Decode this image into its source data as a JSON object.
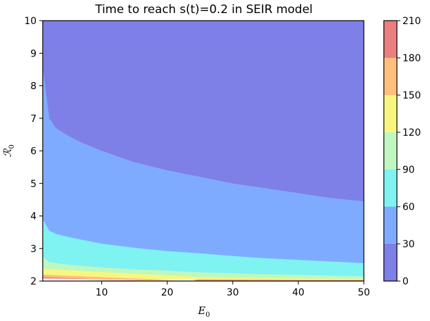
{
  "chart_data": {
    "type": "heatmap",
    "title": "Time to reach s(t)=0.2 in SEIR model",
    "xlabel": {
      "main": "E",
      "sub": "0"
    },
    "ylabel": {
      "main": "ℛ",
      "sub": "0"
    },
    "xlim": [
      1,
      50
    ],
    "ylim": [
      2,
      10
    ],
    "xticks": [
      10,
      20,
      30,
      40,
      50
    ],
    "xtick_labels": [
      "10",
      "20",
      "30",
      "40",
      "50"
    ],
    "yticks": [
      2,
      3,
      4,
      5,
      6,
      7,
      8,
      9,
      10
    ],
    "ytick_labels": [
      "2",
      "3",
      "4",
      "5",
      "6",
      "7",
      "8",
      "9",
      "10"
    ],
    "colorbar": {
      "levels": [
        0,
        30,
        60,
        90,
        120,
        150,
        180,
        210
      ],
      "tick_labels": [
        "0",
        "30",
        "60",
        "90",
        "120",
        "150",
        "180",
        "210"
      ],
      "colors": [
        "#7f7fe8",
        "#7fabff",
        "#7ff2f2",
        "#bff7bf",
        "#f7f77f",
        "#ffbf7f",
        "#eb7f7f"
      ]
    },
    "contours": [
      {
        "level": 30,
        "points": [
          [
            1,
            8.6
          ],
          [
            2,
            7.0
          ],
          [
            3,
            6.7
          ],
          [
            5,
            6.45
          ],
          [
            7,
            6.25
          ],
          [
            10,
            6.0
          ],
          [
            15,
            5.65
          ],
          [
            20,
            5.4
          ],
          [
            25,
            5.2
          ],
          [
            30,
            5.0
          ],
          [
            35,
            4.85
          ],
          [
            40,
            4.7
          ],
          [
            45,
            4.55
          ],
          [
            50,
            4.45
          ]
        ]
      },
      {
        "level": 60,
        "points": [
          [
            1,
            3.9
          ],
          [
            2,
            3.55
          ],
          [
            3,
            3.45
          ],
          [
            5,
            3.35
          ],
          [
            10,
            3.15
          ],
          [
            15,
            3.02
          ],
          [
            20,
            2.92
          ],
          [
            25,
            2.85
          ],
          [
            30,
            2.77
          ],
          [
            35,
            2.7
          ],
          [
            40,
            2.65
          ],
          [
            45,
            2.6
          ],
          [
            50,
            2.55
          ]
        ]
      },
      {
        "level": 90,
        "points": [
          [
            1,
            2.75
          ],
          [
            2,
            2.58
          ],
          [
            5,
            2.5
          ],
          [
            10,
            2.42
          ],
          [
            15,
            2.36
          ],
          [
            20,
            2.32
          ],
          [
            25,
            2.27
          ],
          [
            30,
            2.24
          ],
          [
            35,
            2.21
          ],
          [
            40,
            2.19
          ],
          [
            45,
            2.17
          ],
          [
            50,
            2.15
          ]
        ]
      },
      {
        "level": 120,
        "points": [
          [
            1,
            2.38
          ],
          [
            5,
            2.33
          ],
          [
            10,
            2.28
          ],
          [
            15,
            2.22
          ],
          [
            20,
            2.18
          ],
          [
            23,
            2.14
          ],
          [
            25,
            2.12
          ],
          [
            30,
            2.1
          ],
          [
            35,
            2.09
          ],
          [
            40,
            2.08
          ],
          [
            45,
            2.07
          ],
          [
            50,
            2.07
          ]
        ]
      },
      {
        "level": 150,
        "points": [
          [
            1,
            2.2
          ],
          [
            5,
            2.16
          ],
          [
            10,
            2.12
          ],
          [
            15,
            2.08
          ],
          [
            20,
            2.04
          ],
          [
            23,
            2.02
          ],
          [
            25,
            2.06
          ],
          [
            30,
            2.05
          ],
          [
            35,
            2.05
          ],
          [
            40,
            2.04
          ],
          [
            45,
            2.04
          ],
          [
            50,
            2.04
          ]
        ]
      },
      {
        "level": 180,
        "points": [
          [
            1,
            2.12
          ],
          [
            5,
            2.09
          ],
          [
            10,
            2.05
          ],
          [
            15,
            2.02
          ],
          [
            20,
            2.0
          ],
          [
            25,
            2.03
          ],
          [
            30,
            2.03
          ],
          [
            35,
            2.02
          ],
          [
            40,
            2.02
          ],
          [
            45,
            2.02
          ],
          [
            50,
            2.02
          ]
        ]
      }
    ],
    "blank_region": {
      "note": "",
      "points": [
        [
          1,
          2.08
        ],
        [
          10,
          2.05
        ],
        [
          20,
          2.02
        ],
        [
          23,
          2.0
        ],
        [
          24.5,
          2.0
        ],
        [
          24,
          2.04
        ]
      ]
    }
  }
}
